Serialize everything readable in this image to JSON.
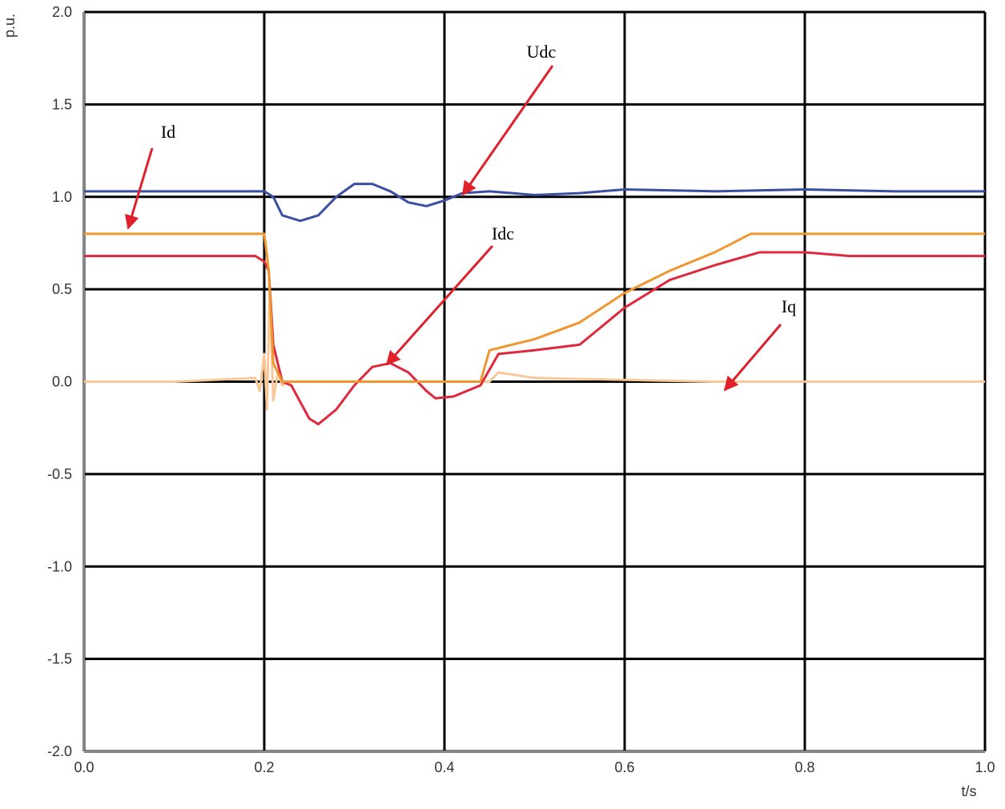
{
  "chart_data": {
    "type": "line",
    "y_label": "p.u.",
    "x_label": "t/s",
    "xlim": [
      0,
      1.0
    ],
    "ylim": [
      -2.0,
      2.0
    ],
    "xticks": [
      {
        "value": 0,
        "label": "0.0"
      },
      0.2,
      0.4,
      0.6,
      0.8,
      {
        "value": 1.0,
        "label": "1.0"
      }
    ],
    "yticks": [
      {
        "value": -2.0,
        "label": "-2.0"
      },
      -1.5,
      {
        "value": -1.0,
        "label": "-1.0"
      },
      -0.5,
      {
        "value": 0,
        "label": "0.0"
      },
      0.5,
      {
        "value": 1.0,
        "label": "1.0"
      },
      1.5,
      {
        "value": 2.0,
        "label": "2.0"
      }
    ],
    "grid": true,
    "annotations": [
      "Udc",
      "Id",
      "Idc",
      "Iq"
    ],
    "series": [
      {
        "name": "Udc",
        "color": "#3a4fa3",
        "x": [
          0,
          0.05,
          0.1,
          0.15,
          0.2,
          0.21,
          0.22,
          0.24,
          0.26,
          0.28,
          0.3,
          0.32,
          0.34,
          0.36,
          0.38,
          0.4,
          0.42,
          0.45,
          0.5,
          0.55,
          0.6,
          0.7,
          0.8,
          0.9,
          1.0
        ],
        "values": [
          1.03,
          1.03,
          1.03,
          1.03,
          1.03,
          1.0,
          0.9,
          0.87,
          0.9,
          1.0,
          1.07,
          1.07,
          1.03,
          0.97,
          0.95,
          0.98,
          1.02,
          1.03,
          1.01,
          1.02,
          1.04,
          1.03,
          1.04,
          1.03,
          1.03
        ]
      },
      {
        "name": "Id",
        "color": "#f0962e",
        "x": [
          0,
          0.05,
          0.1,
          0.15,
          0.2,
          0.205,
          0.21,
          0.22,
          0.25,
          0.3,
          0.4,
          0.44,
          0.45,
          0.5,
          0.55,
          0.6,
          0.65,
          0.7,
          0.74,
          0.8,
          0.9,
          1.0
        ],
        "values": [
          0.8,
          0.8,
          0.8,
          0.8,
          0.8,
          0.6,
          0.1,
          0.0,
          0.0,
          0.0,
          0.0,
          0.0,
          0.17,
          0.23,
          0.32,
          0.48,
          0.6,
          0.7,
          0.8,
          0.8,
          0.8,
          0.8
        ]
      },
      {
        "name": "Idc",
        "color": "#e0283c",
        "x": [
          0,
          0.05,
          0.1,
          0.15,
          0.19,
          0.2,
          0.205,
          0.21,
          0.22,
          0.23,
          0.25,
          0.26,
          0.28,
          0.3,
          0.32,
          0.34,
          0.36,
          0.38,
          0.39,
          0.41,
          0.44,
          0.46,
          0.5,
          0.55,
          0.6,
          0.65,
          0.7,
          0.75,
          0.8,
          0.85,
          0.9,
          1.0
        ],
        "values": [
          0.68,
          0.68,
          0.68,
          0.68,
          0.68,
          0.65,
          0.6,
          0.2,
          0.0,
          -0.02,
          -0.2,
          -0.23,
          -0.15,
          -0.02,
          0.08,
          0.1,
          0.05,
          -0.05,
          -0.09,
          -0.08,
          -0.02,
          0.15,
          0.17,
          0.2,
          0.4,
          0.55,
          0.63,
          0.7,
          0.7,
          0.68,
          0.68,
          0.68
        ]
      },
      {
        "name": "Iq",
        "color": "#fac898",
        "x": [
          0,
          0.1,
          0.19,
          0.195,
          0.2,
          0.203,
          0.206,
          0.21,
          0.215,
          0.22,
          0.23,
          0.45,
          0.46,
          0.5,
          0.7,
          1.0
        ],
        "values": [
          0,
          0,
          0.02,
          -0.05,
          0.15,
          -0.15,
          0.5,
          -0.1,
          0.05,
          -0.02,
          0,
          0,
          0.05,
          0.02,
          0,
          0
        ]
      }
    ]
  }
}
